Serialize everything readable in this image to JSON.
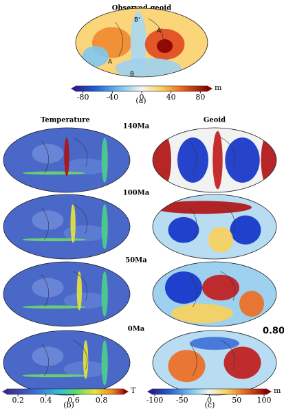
{
  "panel_a": {
    "title": "Observed geoid",
    "point_labels": [
      "B'",
      "A'",
      "A",
      "B"
    ],
    "colorbar": {
      "lim": [
        -90,
        90
      ],
      "ticks": [
        -80,
        -40,
        0,
        40,
        80
      ],
      "unit": "m"
    },
    "caption": "(a)"
  },
  "panel_b": {
    "title": "Temperature",
    "colorbar": {
      "lim": [
        0.12,
        0.96
      ],
      "ticks": [
        0.2,
        0.4,
        0.6,
        0.8
      ],
      "unit": "T"
    },
    "caption": "(b)"
  },
  "panel_c": {
    "title": "Geoid",
    "annotation": "0.80",
    "colorbar": {
      "lim": [
        -105,
        105
      ],
      "ticks": [
        -100,
        -50,
        0,
        50,
        100
      ],
      "unit": "m"
    },
    "caption": "(c)"
  },
  "ages": [
    "140Ma",
    "100Ma",
    "50Ma",
    "0Ma"
  ]
}
